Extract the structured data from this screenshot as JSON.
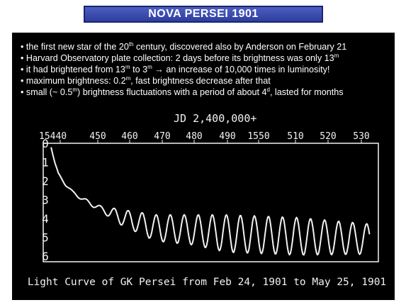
{
  "title": "NOVA PERSEI 1901",
  "bullets": [
    {
      "parts": [
        {
          "t": "the first new star of the 20"
        },
        {
          "t": "th",
          "sup": true
        },
        {
          "t": " century, discovered also by Anderson on February 21"
        }
      ]
    },
    {
      "parts": [
        {
          "t": "Harvard Observatory plate collection: 2 days before its brightness was only 13"
        },
        {
          "t": "m",
          "sup": true
        }
      ]
    },
    {
      "parts": [
        {
          "t": "it had brightened from 13"
        },
        {
          "t": "m",
          "sup": true
        },
        {
          "t": " to 3"
        },
        {
          "t": "m",
          "sup": true
        },
        {
          "t": " → an increase of 10,000 times in luminosity!"
        }
      ]
    },
    {
      "parts": [
        {
          "t": "maximum brightness: 0.2"
        },
        {
          "t": "m",
          "sup": true
        },
        {
          "t": ", fast brightness decrease after that"
        }
      ]
    },
    {
      "parts": [
        {
          "t": "small (~ 0.5"
        },
        {
          "t": "m",
          "sup": true
        },
        {
          "t": ") brightness fluctuations with a period of about 4"
        },
        {
          "t": "d",
          "sup": true
        },
        {
          "t": ", lasted for months"
        }
      ]
    }
  ],
  "chart_data": {
    "type": "line",
    "top_label": "JD 2,400,000+",
    "x_ticks": [
      "15440",
      "450",
      "460",
      "470",
      "480",
      "490",
      "1550",
      "510",
      "520",
      "530"
    ],
    "y_ticks": [
      "0",
      "1",
      "2",
      "3",
      "4",
      "5",
      "6"
    ],
    "caption": "Light Curve of GK Persei from Feb 24, 1901 to May 25, 1901",
    "xlim": [
      440,
      530
    ],
    "ylim": [
      0,
      6.3
    ],
    "y_inverted": true,
    "trend": [
      [
        441,
        0.2
      ],
      [
        442,
        1.0
      ],
      [
        443,
        1.6
      ],
      [
        445,
        2.2
      ],
      [
        447,
        2.6
      ],
      [
        450,
        3.0
      ],
      [
        455,
        3.5
      ],
      [
        460,
        3.9
      ],
      [
        465,
        4.2
      ],
      [
        470,
        4.5
      ],
      [
        480,
        4.6
      ],
      [
        490,
        4.8
      ],
      [
        530,
        5.1
      ]
    ],
    "oscillation_period_days": 3.9,
    "oscillation_amplitude": [
      [
        440,
        0.0
      ],
      [
        450,
        0.1
      ],
      [
        455,
        0.15
      ],
      [
        460,
        0.4
      ],
      [
        470,
        0.7
      ],
      [
        480,
        0.8
      ],
      [
        490,
        1.0
      ],
      [
        510,
        1.0
      ],
      [
        530,
        0.8
      ]
    ],
    "color": "#f2f2f2"
  }
}
